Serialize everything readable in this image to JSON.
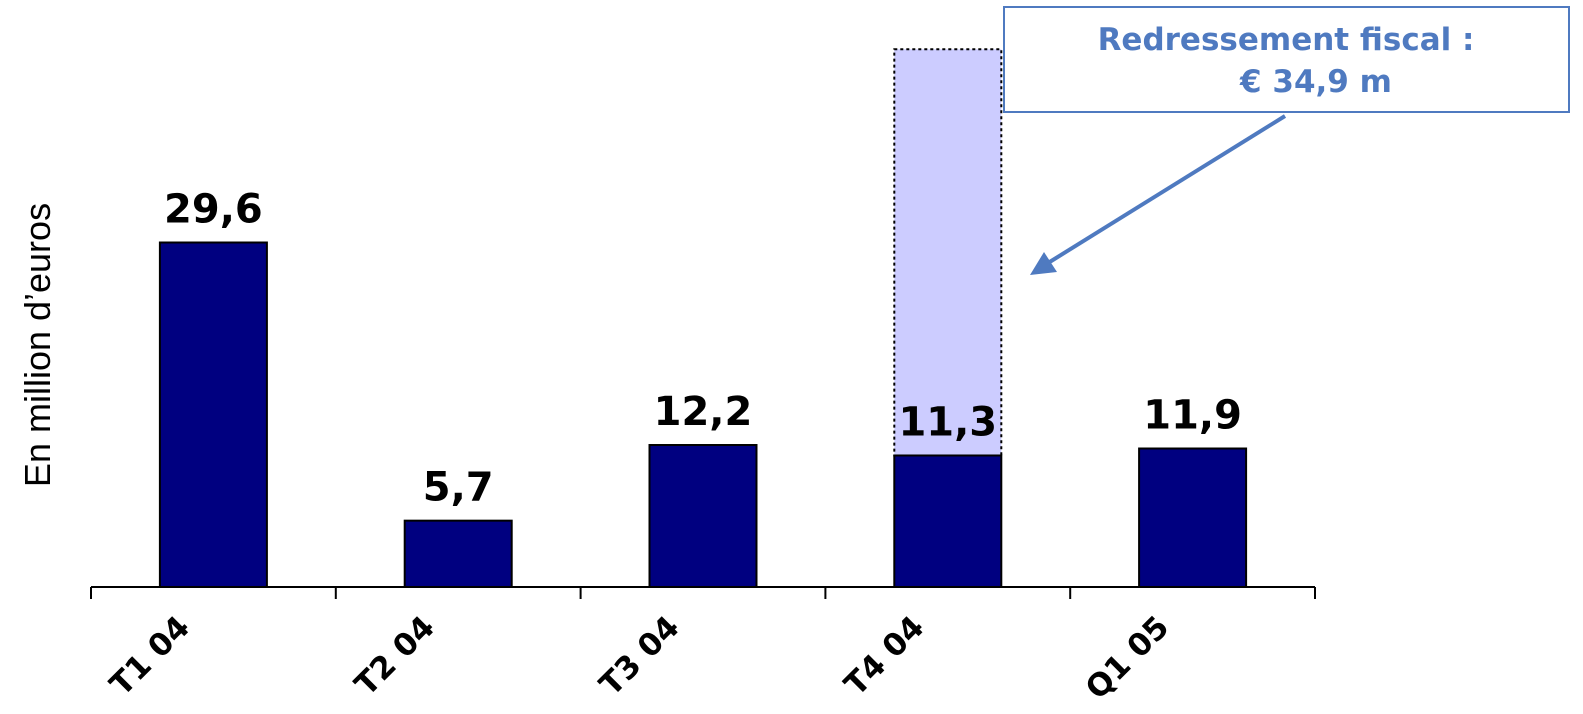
{
  "chart_data": {
    "type": "bar",
    "ylabel": "En million d’euros",
    "categories": [
      "T1 04",
      "T2 04",
      "T3 04",
      "T4 04",
      "Q1 05"
    ],
    "values": [
      29.6,
      5.7,
      12.2,
      11.3,
      11.9
    ],
    "value_labels": [
      "29,6",
      "5,7",
      "12,2",
      "11,3",
      "11,9"
    ],
    "stacked_extra": {
      "category": "T4 04",
      "value": 34.9
    },
    "ylim": [
      0,
      47
    ],
    "grid": false,
    "legend": "none",
    "annotation": {
      "lines": [
        "Redressement fiscal :",
        "€ 34,9 m"
      ],
      "points_to": "T4 04"
    },
    "colors": {
      "bar": "#000080",
      "extra_fill": "#ccccff",
      "annotation": "#4f7ac0",
      "axis": "#000000"
    }
  }
}
